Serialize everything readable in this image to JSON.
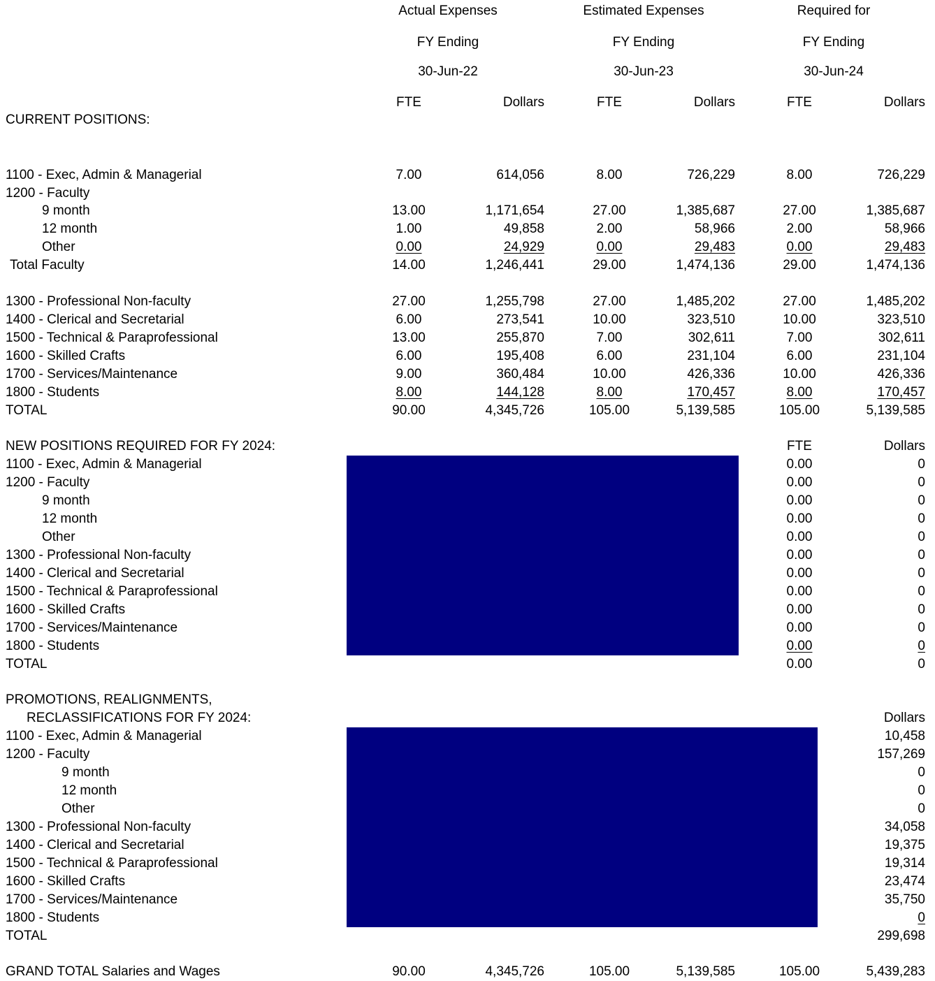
{
  "header": {
    "col1": [
      "Actual Expenses",
      "FY Ending",
      "30-Jun-22"
    ],
    "col2": [
      "Estimated Expenses",
      "FY Ending",
      "30-Jun-23"
    ],
    "col3": [
      "Required for",
      "FY Ending",
      "30-Jun-24"
    ],
    "fte": "FTE",
    "dollars": "Dollars"
  },
  "current": {
    "title": "CURRENT POSITIONS:",
    "rows": [
      {
        "label": "1100 - Exec, Admin & Managerial",
        "v": [
          "7.00",
          "614,056",
          "8.00",
          "726,229",
          "8.00",
          "726,229"
        ]
      },
      {
        "label": "1200 - Faculty",
        "v": [
          "",
          "",
          "",
          "",
          "",
          ""
        ]
      },
      {
        "label": "9 month",
        "v": [
          "13.00",
          "1,171,654",
          "27.00",
          "1,385,687",
          "27.00",
          "1,385,687"
        ]
      },
      {
        "label": "12 month",
        "v": [
          "1.00",
          "49,858",
          "2.00",
          "58,966",
          "2.00",
          "58,966"
        ]
      },
      {
        "label": "Other",
        "v": [
          "0.00",
          "24,929",
          "0.00",
          "29,483",
          "0.00",
          "29,483"
        ]
      },
      {
        "label": "Total Faculty",
        "v": [
          "14.00",
          "1,246,441",
          "29.00",
          "1,474,136",
          "29.00",
          "1,474,136"
        ]
      },
      {
        "label": "1300 - Professional Non-faculty",
        "v": [
          "27.00",
          "1,255,798",
          "27.00",
          "1,485,202",
          "27.00",
          "1,485,202"
        ]
      },
      {
        "label": "1400 - Clerical and Secretarial",
        "v": [
          "6.00",
          "273,541",
          "10.00",
          "323,510",
          "10.00",
          "323,510"
        ]
      },
      {
        "label": "1500 - Technical & Paraprofessional",
        "v": [
          "13.00",
          "255,870",
          "7.00",
          "302,611",
          "7.00",
          "302,611"
        ]
      },
      {
        "label": "1600 - Skilled Crafts",
        "v": [
          "6.00",
          "195,408",
          "6.00",
          "231,104",
          "6.00",
          "231,104"
        ]
      },
      {
        "label": "1700 - Services/Maintenance",
        "v": [
          "9.00",
          "360,484",
          "10.00",
          "426,336",
          "10.00",
          "426,336"
        ]
      },
      {
        "label": "1800 - Students",
        "v": [
          "8.00",
          "144,128",
          "8.00",
          "170,457",
          "8.00",
          "170,457"
        ]
      },
      {
        "label": "TOTAL",
        "v": [
          "90.00",
          "4,345,726",
          "105.00",
          "5,139,585",
          "105.00",
          "5,139,585"
        ]
      }
    ]
  },
  "new_positions": {
    "title": "NEW POSITIONS REQUIRED FOR FY 2024:",
    "fte_header": "FTE",
    "dollars_header": "Dollars",
    "rows": [
      {
        "label": "1100 - Exec, Admin & Managerial",
        "fte": "0.00",
        "dollars": "0"
      },
      {
        "label": "1200 - Faculty",
        "fte": "0.00",
        "dollars": "0"
      },
      {
        "label": "9 month",
        "fte": "0.00",
        "dollars": "0"
      },
      {
        "label": "12 month",
        "fte": "0.00",
        "dollars": "0"
      },
      {
        "label": "Other",
        "fte": "0.00",
        "dollars": "0"
      },
      {
        "label": "1300 - Professional Non-faculty",
        "fte": "0.00",
        "dollars": "0"
      },
      {
        "label": "1400 - Clerical and Secretarial",
        "fte": "0.00",
        "dollars": "0"
      },
      {
        "label": "1500 - Technical & Paraprofessional",
        "fte": "0.00",
        "dollars": "0"
      },
      {
        "label": "1600 - Skilled Crafts",
        "fte": "0.00",
        "dollars": "0"
      },
      {
        "label": "1700 - Services/Maintenance",
        "fte": "0.00",
        "dollars": "0"
      },
      {
        "label": "1800 - Students",
        "fte": "0.00",
        "dollars": "0"
      },
      {
        "label": "TOTAL",
        "fte": "0.00",
        "dollars": "0"
      }
    ]
  },
  "promotions": {
    "title1": "PROMOTIONS, REALIGNMENTS,",
    "title2": "RECLASSIFICATIONS FOR FY 2024:",
    "dollars_header": "Dollars",
    "rows": [
      {
        "label": "1100 - Exec, Admin & Managerial",
        "dollars": "10,458"
      },
      {
        "label": "1200 - Faculty",
        "dollars": "157,269"
      },
      {
        "label": "9 month",
        "dollars": "0"
      },
      {
        "label": "12 month",
        "dollars": "0"
      },
      {
        "label": "Other",
        "dollars": "0"
      },
      {
        "label": "1300 - Professional Non-faculty",
        "dollars": "34,058"
      },
      {
        "label": "1400 - Clerical and Secretarial",
        "dollars": "19,375"
      },
      {
        "label": "1500 - Technical & Paraprofessional",
        "dollars": "19,314"
      },
      {
        "label": "1600 - Skilled Crafts",
        "dollars": "23,474"
      },
      {
        "label": "1700 - Services/Maintenance",
        "dollars": "35,750"
      },
      {
        "label": "1800 - Students",
        "dollars": "0"
      },
      {
        "label": "TOTAL",
        "dollars": "299,698"
      }
    ]
  },
  "grand_total": {
    "label": "GRAND TOTAL Salaries and Wages",
    "v": [
      "90.00",
      "4,345,726",
      "105.00",
      "5,139,585",
      "105.00",
      "5,439,283"
    ]
  },
  "colors": {
    "redaction": "#000080"
  }
}
